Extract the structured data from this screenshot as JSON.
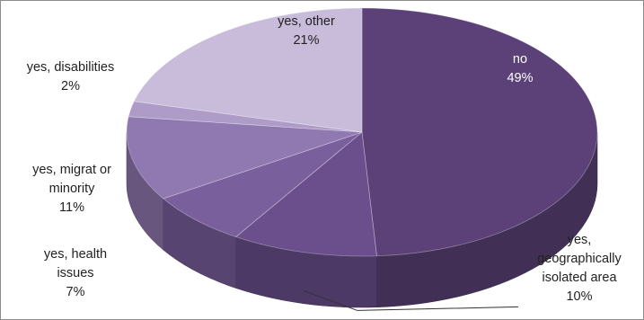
{
  "chart_data": {
    "type": "pie",
    "is_3d": true,
    "legend": "none",
    "slices": [
      {
        "lines": [
          "no"
        ],
        "percent_label": "49%",
        "value": 49,
        "color": "#5b4178"
      },
      {
        "lines": [
          "yes,",
          "geographically",
          "isolated area"
        ],
        "percent_label": "10%",
        "value": 10,
        "color": "#6b4f8d"
      },
      {
        "lines": [
          "yes, health",
          "issues"
        ],
        "percent_label": "7%",
        "value": 7,
        "color": "#7a5f9d"
      },
      {
        "lines": [
          "yes, migrat or",
          "minority"
        ],
        "percent_label": "11%",
        "value": 11,
        "color": "#9078b0"
      },
      {
        "lines": [
          "yes, disabilities"
        ],
        "percent_label": "2%",
        "value": 2,
        "color": "#ae9bc7"
      },
      {
        "lines": [
          "yes, other"
        ],
        "percent_label": "21%",
        "value": 21,
        "color": "#c9bcdb"
      }
    ]
  }
}
